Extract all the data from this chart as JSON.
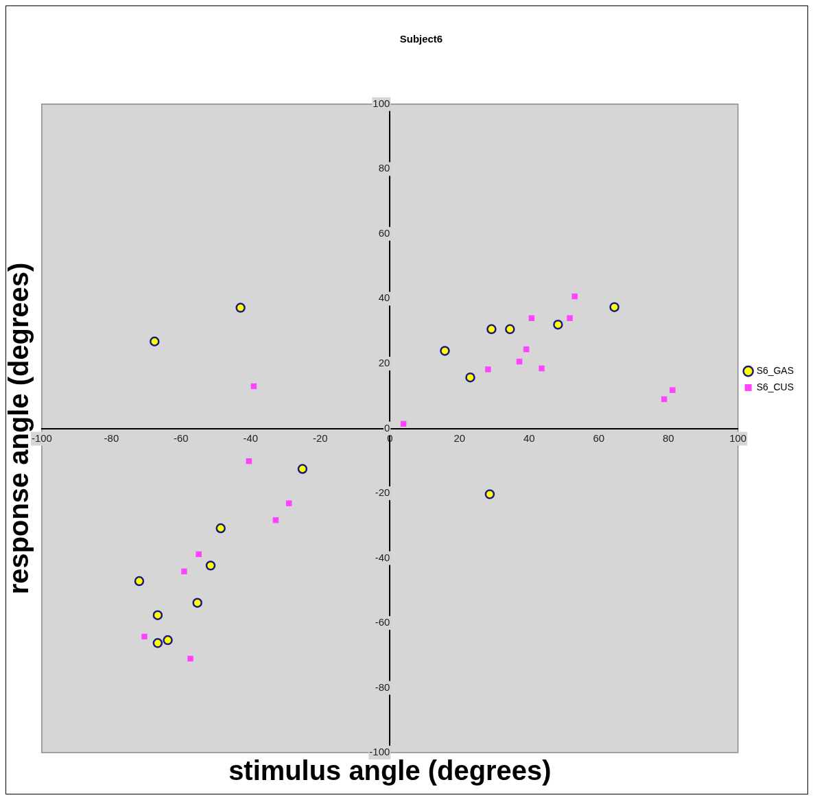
{
  "chart_data": {
    "type": "scatter",
    "title": "Subject6",
    "xlabel": "stimulus angle (degrees)",
    "ylabel": "response angle (degrees)",
    "xlim": [
      -100,
      100
    ],
    "ylim": [
      -100,
      100
    ],
    "xticks": [
      -100,
      -80,
      -60,
      -40,
      -20,
      0,
      20,
      40,
      60,
      80,
      100
    ],
    "yticks": [
      -100,
      -80,
      -60,
      -40,
      -20,
      0,
      20,
      40,
      60,
      80,
      100
    ],
    "grid": false,
    "legend": "right",
    "series": [
      {
        "name": "S6_GAS",
        "color": "#ffff00",
        "marker": "circle",
        "x": [
          -67.6,
          -42.9,
          15.8,
          23.1,
          29.2,
          34.5,
          48.3,
          64.5,
          28.7,
          -25.1,
          -48.6,
          -51.5,
          -72.0,
          -55.3,
          -66.7,
          -66.7,
          -63.8
        ],
        "values": [
          26.8,
          37.2,
          23.9,
          15.7,
          30.6,
          30.6,
          32.0,
          37.4,
          -20.3,
          -12.5,
          -30.8,
          -42.3,
          -47.1,
          -53.8,
          -57.6,
          -66.2,
          -65.3
        ]
      },
      {
        "name": "S6_CUS",
        "color": "#ff44ff",
        "marker": "square",
        "x": [
          -39.1,
          3.9,
          28.2,
          37.2,
          39.2,
          43.6,
          40.7,
          51.7,
          53.1,
          78.8,
          81.2,
          -40.5,
          -29.0,
          -32.8,
          -54.9,
          -59.1,
          -70.5,
          -57.3
        ],
        "values": [
          13.0,
          1.4,
          18.2,
          20.6,
          24.4,
          18.5,
          34.0,
          34.0,
          40.7,
          9.0,
          11.8,
          -10.1,
          -23.1,
          -28.3,
          -38.8,
          -44.1,
          -64.2,
          -71.0
        ]
      }
    ]
  }
}
